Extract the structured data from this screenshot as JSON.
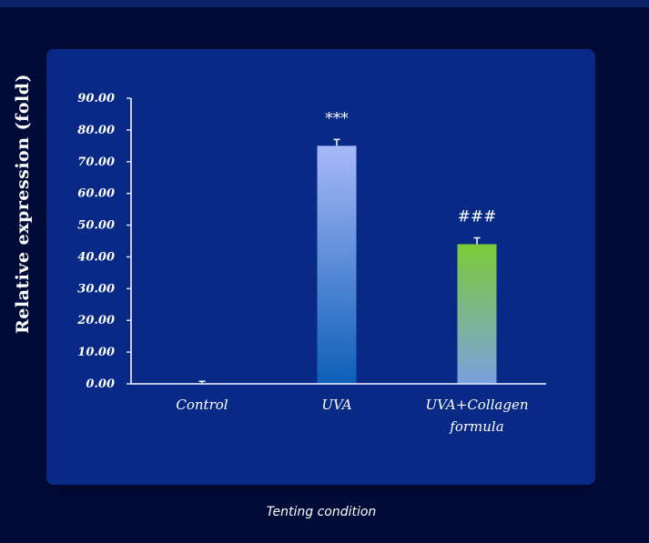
{
  "chart_data": {
    "type": "bar",
    "ylabel": "Relative expression (fold)",
    "xlabel": "Tenting condition",
    "ylim": [
      0,
      90
    ],
    "yticks": [
      "0.00",
      "10.00",
      "20.00",
      "30.00",
      "40.00",
      "50.00",
      "60.00",
      "70.00",
      "80.00",
      "90.00"
    ],
    "categories": [
      [
        "Control"
      ],
      [
        "UVA"
      ],
      [
        "UVA+Collagen",
        "formula"
      ]
    ],
    "values": [
      0.3,
      75,
      44
    ],
    "errors": [
      0.5,
      2.0,
      2.0
    ],
    "significance": [
      "",
      "***",
      "###"
    ],
    "bar_colors": [
      [
        "#a8b8f8",
        "#0d5fb8"
      ],
      [
        "#a8b8f8",
        "#0d5fb8"
      ],
      [
        "#7ccc38",
        "#7aa0e0"
      ]
    ],
    "grid": false,
    "legend": "none"
  },
  "colors": {
    "background": "#010a35",
    "panel": "#082a86",
    "text": "#ffffff",
    "axis": "#d8def5"
  }
}
